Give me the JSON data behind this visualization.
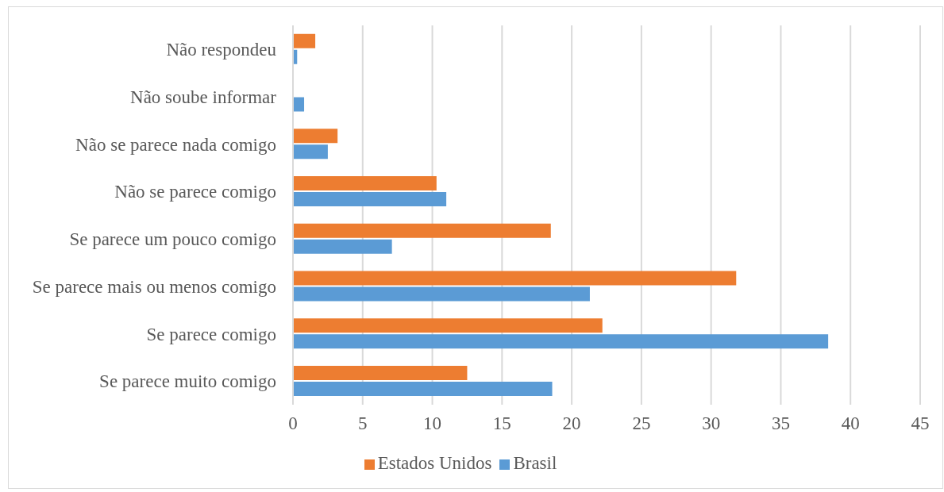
{
  "chart_data": {
    "type": "bar",
    "orientation": "horizontal",
    "categories": [
      "Não respondeu",
      "Não soube informar",
      "Não se parece nada comigo",
      "Não se parece comigo",
      "Se parece um pouco comigo",
      "Se parece mais ou menos comigo",
      "Se parece comigo",
      "Se parece muito comigo"
    ],
    "series": [
      {
        "name": "Estados Unidos",
        "color": "#ed7d31",
        "values": [
          1.6,
          0,
          3.2,
          10.3,
          18.5,
          31.8,
          22.2,
          12.5
        ]
      },
      {
        "name": "Brasil",
        "color": "#5b9bd5",
        "values": [
          0.3,
          0.8,
          2.5,
          11.0,
          7.1,
          21.3,
          38.4,
          18.6
        ]
      }
    ],
    "xlim": [
      0,
      45
    ],
    "xticks": [
      0,
      5,
      10,
      15,
      20,
      25,
      30,
      35,
      40,
      45
    ],
    "grid": "x",
    "legend": "bottom"
  }
}
